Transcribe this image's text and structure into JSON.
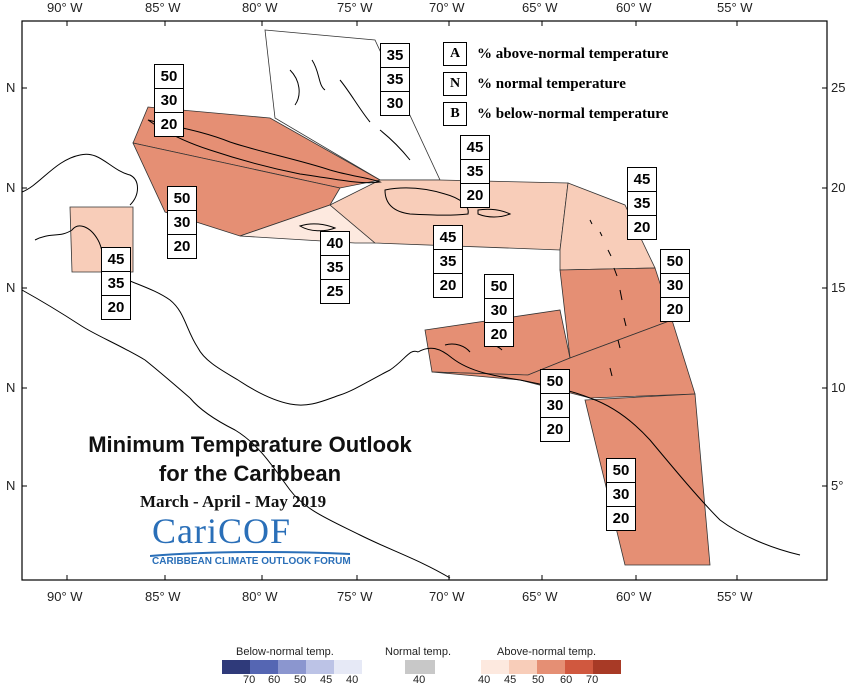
{
  "map": {
    "lon_labels": [
      "90° W",
      "85° W",
      "80° W",
      "75° W",
      "70° W",
      "65° W",
      "60° W",
      "55° W"
    ],
    "lat_labels_left": [
      "N",
      "N",
      "N",
      "N",
      "N"
    ],
    "lat_labels_right": [
      "25°",
      "20°",
      "15°",
      "10°",
      "5°"
    ]
  },
  "legend_keys": [
    {
      "key": "A",
      "text": "% above-normal temperature"
    },
    {
      "key": "N",
      "text": "% normal temperature"
    },
    {
      "key": "B",
      "text": "% below-normal temperature"
    }
  ],
  "regions": [
    {
      "id": "bahamas",
      "values": [
        "35",
        "35",
        "30"
      ],
      "color": "#ffffff"
    },
    {
      "id": "cuba",
      "values": [
        "50",
        "30",
        "20"
      ],
      "color": "#e58f74"
    },
    {
      "id": "cayman-jamaica",
      "values": [
        "50",
        "30",
        "20"
      ],
      "color": "#e58f74"
    },
    {
      "id": "belize",
      "values": [
        "45",
        "35",
        "20"
      ],
      "color": "#f8cdb9"
    },
    {
      "id": "jamaica-haiti-strip",
      "values": [
        "40",
        "35",
        "25"
      ],
      "color": "#fde9df"
    },
    {
      "id": "hispaniola-puerto-rico",
      "values": [
        "45",
        "35",
        "20"
      ],
      "color": "#f8cdb9"
    },
    {
      "id": "turks-caicos",
      "values": [
        "45",
        "35",
        "20"
      ],
      "color": "#f8cdb9"
    },
    {
      "id": "leeward-islands",
      "values": [
        "45",
        "35",
        "20"
      ],
      "color": "#f8cdb9"
    },
    {
      "id": "windward-islands",
      "values": [
        "50",
        "30",
        "20"
      ],
      "color": "#e58f74"
    },
    {
      "id": "abc-islands",
      "values": [
        "50",
        "30",
        "20"
      ],
      "color": "#e58f74"
    },
    {
      "id": "trinidad-coast",
      "values": [
        "50",
        "30",
        "20"
      ],
      "color": "#e58f74"
    },
    {
      "id": "guianas",
      "values": [
        "50",
        "30",
        "20"
      ],
      "color": "#e58f74"
    }
  ],
  "title": {
    "line1": "Minimum Temperature Outlook",
    "line2": "for the Caribbean",
    "period": "March - April - May 2019"
  },
  "logo": {
    "name": "CariCOF",
    "subtitle": "CARIBBEAN CLIMATE OUTLOOK FORUM"
  },
  "scale": {
    "below_label": "Below-normal temp.",
    "normal_label": "Normal temp.",
    "above_label": "Above-normal temp.",
    "below_ticks": [
      "70",
      "60",
      "50",
      "45",
      "40"
    ],
    "normal_ticks": [
      "40"
    ],
    "above_ticks": [
      "40",
      "45",
      "50",
      "60",
      "70"
    ],
    "below_colors": [
      "#2f3a7a",
      "#5566b3",
      "#8b96cf",
      "#bcc3e6",
      "#e6e9f6"
    ],
    "normal_color": "#c8c8c8",
    "above_colors": [
      "#fde9df",
      "#f8cdb9",
      "#e58f74",
      "#d0583f",
      "#a83a26"
    ]
  }
}
